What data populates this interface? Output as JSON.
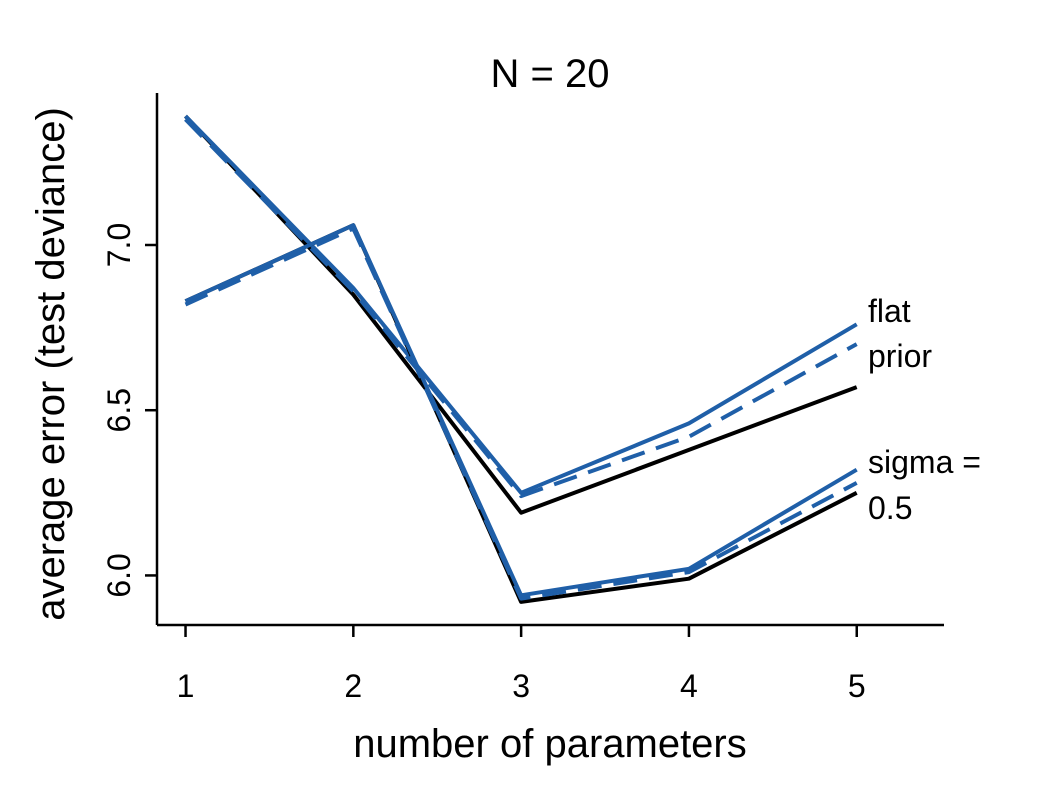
{
  "chart_data": {
    "type": "line",
    "title": "N = 20",
    "xlabel": "number of parameters",
    "ylabel": "average error (test deviance)",
    "x": [
      1,
      2,
      3,
      4,
      5
    ],
    "xlim": [
      0.83,
      5.52
    ],
    "ylim": [
      5.85,
      7.46
    ],
    "x_ticks": [
      1,
      2,
      3,
      4,
      5
    ],
    "x_tick_labels": [
      "1",
      "2",
      "3",
      "4",
      "5"
    ],
    "y_ticks": [
      6.0,
      6.5,
      7.0
    ],
    "y_tick_labels": [
      "6.0",
      "6.5",
      "7.0"
    ],
    "grid": false,
    "legend": "none",
    "annotations": [
      {
        "text": "flat",
        "group": "upper-group"
      },
      {
        "text": "prior",
        "group": "upper-group"
      },
      {
        "text": "sigma =",
        "group": "lower-group"
      },
      {
        "text": "0.5",
        "group": "lower-group"
      }
    ],
    "series": [
      {
        "group": "upper-group",
        "color": "#000000",
        "dash": "solid",
        "values": [
          7.39,
          6.85,
          6.19,
          6.38,
          6.57
        ]
      },
      {
        "group": "upper-group",
        "color": "#1f5fa8",
        "dash": "dashed",
        "values": [
          7.38,
          6.86,
          6.24,
          6.42,
          6.7
        ]
      },
      {
        "group": "upper-group",
        "color": "#1f5fa8",
        "dash": "solid",
        "values": [
          7.39,
          6.87,
          6.25,
          6.46,
          6.76
        ]
      },
      {
        "group": "lower-group",
        "color": "#000000",
        "dash": "solid",
        "values": [
          6.83,
          7.06,
          5.92,
          5.99,
          6.25
        ]
      },
      {
        "group": "lower-group",
        "color": "#1f5fa8",
        "dash": "dashed",
        "values": [
          6.82,
          7.05,
          5.93,
          6.01,
          6.28
        ]
      },
      {
        "group": "lower-group",
        "color": "#1f5fa8",
        "dash": "solid",
        "values": [
          6.83,
          7.06,
          5.94,
          6.02,
          6.32
        ]
      }
    ]
  }
}
